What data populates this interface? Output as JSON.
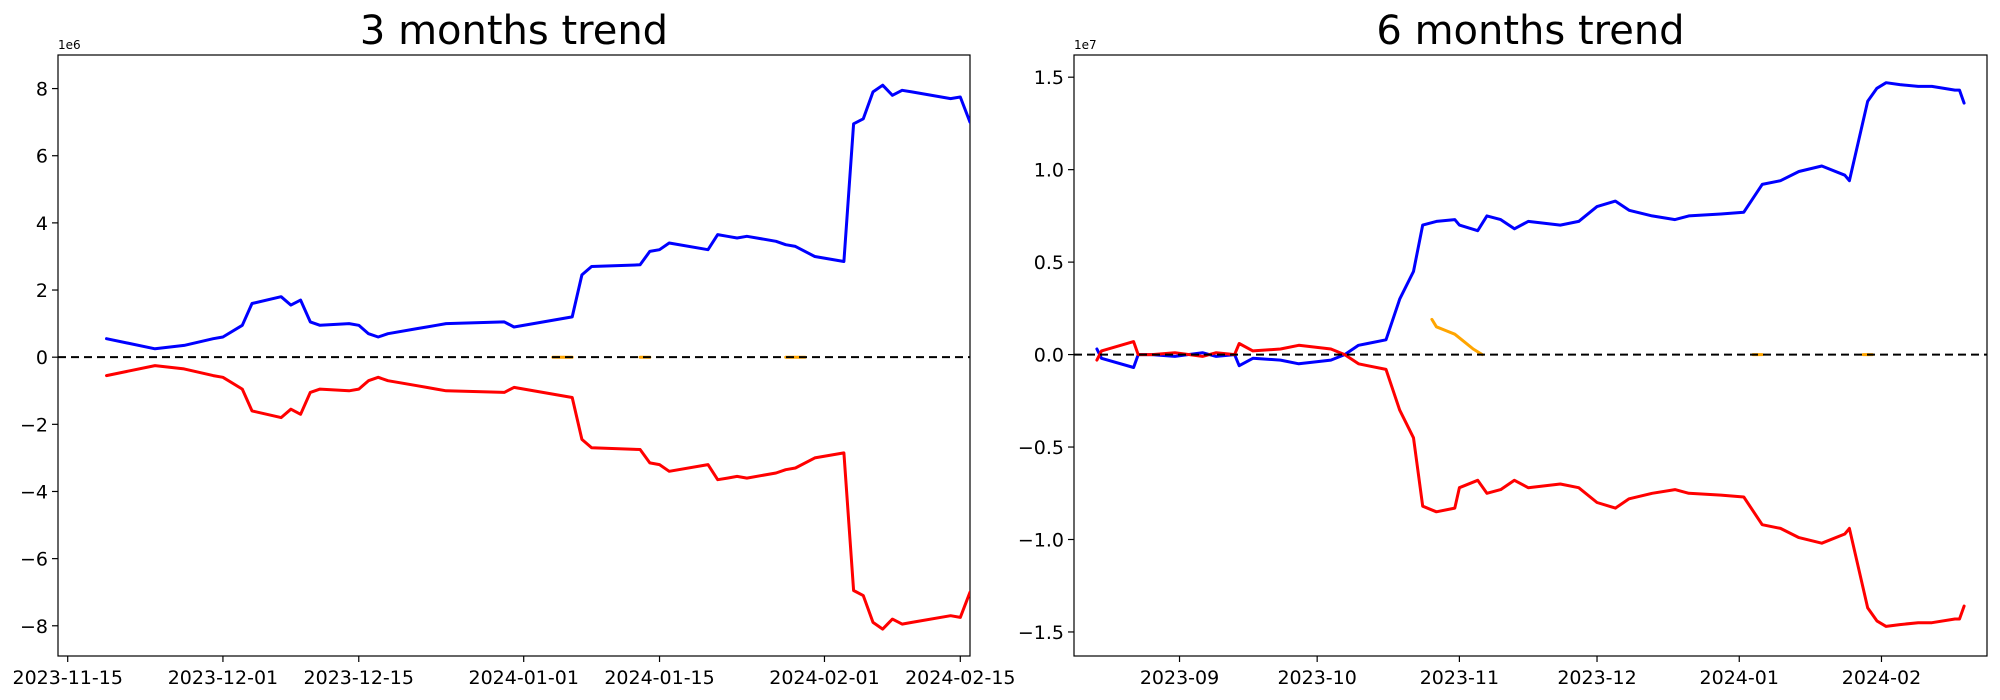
{
  "chart_data": [
    {
      "type": "line",
      "title": "3 months trend",
      "xlabel": "",
      "ylabel": "",
      "y_offset_label": "1e6",
      "xlim": [
        "2023-11-14",
        "2024-02-16"
      ],
      "ylim": [
        -8.9,
        9.0
      ],
      "x_ticks": [
        "2023-11-15",
        "2023-12-01",
        "2023-12-15",
        "2024-01-01",
        "2024-01-15",
        "2024-02-01",
        "2024-02-15"
      ],
      "y_ticks": [
        -8,
        -6,
        -4,
        -2,
        0,
        2,
        4,
        6,
        8
      ],
      "grid": false,
      "legend": "none",
      "reference_line": 0,
      "series": [
        {
          "color": "#0000ff",
          "x": [
            "2023-11-19",
            "2023-11-24",
            "2023-11-27",
            "2023-11-30",
            "2023-12-01",
            "2023-12-03",
            "2023-12-04",
            "2023-12-07",
            "2023-12-08",
            "2023-12-09",
            "2023-12-10",
            "2023-12-11",
            "2023-12-14",
            "2023-12-15",
            "2023-12-16",
            "2023-12-17",
            "2023-12-18",
            "2023-12-21",
            "2023-12-22",
            "2023-12-23",
            "2023-12-24",
            "2023-12-30",
            "2023-12-31",
            "2024-01-06",
            "2024-01-07",
            "2024-01-08",
            "2024-01-13",
            "2024-01-14",
            "2024-01-15",
            "2024-01-16",
            "2024-01-20",
            "2024-01-21",
            "2024-01-22",
            "2024-01-23",
            "2024-01-24",
            "2024-01-27",
            "2024-01-28",
            "2024-01-29",
            "2024-01-31",
            "2024-02-03",
            "2024-02-04",
            "2024-02-05",
            "2024-02-06",
            "2024-02-07",
            "2024-02-08",
            "2024-02-09",
            "2024-02-10",
            "2024-02-14",
            "2024-02-15",
            "2024-02-16"
          ],
          "values": [
            0.55,
            0.25,
            0.35,
            0.55,
            0.6,
            0.95,
            1.6,
            1.8,
            1.55,
            1.7,
            1.05,
            0.95,
            1.0,
            0.95,
            0.7,
            0.6,
            0.7,
            0.85,
            0.9,
            0.95,
            1.0,
            1.05,
            0.9,
            1.2,
            2.45,
            2.7,
            2.75,
            3.15,
            3.2,
            3.4,
            3.2,
            3.65,
            3.6,
            3.55,
            3.6,
            3.45,
            3.35,
            3.3,
            3.0,
            2.85,
            6.95,
            7.1,
            7.9,
            8.1,
            7.8,
            7.95,
            7.9,
            7.7,
            7.75,
            7.0
          ]
        },
        {
          "color": "#ff0000",
          "x": [
            "2023-11-19",
            "2023-11-24",
            "2023-11-27",
            "2023-11-30",
            "2023-12-01",
            "2023-12-03",
            "2023-12-04",
            "2023-12-07",
            "2023-12-08",
            "2023-12-09",
            "2023-12-10",
            "2023-12-11",
            "2023-12-14",
            "2023-12-15",
            "2023-12-16",
            "2023-12-17",
            "2023-12-18",
            "2023-12-21",
            "2023-12-22",
            "2023-12-23",
            "2023-12-24",
            "2023-12-30",
            "2023-12-31",
            "2024-01-06",
            "2024-01-07",
            "2024-01-08",
            "2024-01-13",
            "2024-01-14",
            "2024-01-15",
            "2024-01-16",
            "2024-01-20",
            "2024-01-21",
            "2024-01-22",
            "2024-01-23",
            "2024-01-24",
            "2024-01-27",
            "2024-01-28",
            "2024-01-29",
            "2024-01-31",
            "2024-02-03",
            "2024-02-04",
            "2024-02-05",
            "2024-02-06",
            "2024-02-07",
            "2024-02-08",
            "2024-02-09",
            "2024-02-10",
            "2024-02-14",
            "2024-02-15",
            "2024-02-16"
          ],
          "values": [
            -0.55,
            -0.25,
            -0.35,
            -0.55,
            -0.6,
            -0.95,
            -1.6,
            -1.8,
            -1.55,
            -1.7,
            -1.05,
            -0.95,
            -1.0,
            -0.95,
            -0.7,
            -0.6,
            -0.7,
            -0.85,
            -0.9,
            -0.95,
            -1.0,
            -1.05,
            -0.9,
            -1.2,
            -2.45,
            -2.7,
            -2.75,
            -3.15,
            -3.2,
            -3.4,
            -3.2,
            -3.65,
            -3.6,
            -3.55,
            -3.6,
            -3.45,
            -3.35,
            -3.3,
            -3.0,
            -2.85,
            -6.95,
            -7.1,
            -7.9,
            -8.1,
            -7.8,
            -7.95,
            -7.9,
            -7.7,
            -7.75,
            -7.0
          ]
        },
        {
          "color": "#ffa500",
          "x": [
            "2024-01-04",
            "2024-01-06"
          ],
          "values": [
            0.0,
            0.0
          ]
        },
        {
          "color": "#ffa500",
          "x": [
            "2024-01-13",
            "2024-01-14"
          ],
          "values": [
            0.0,
            0.0
          ]
        },
        {
          "color": "#ffa500",
          "x": [
            "2024-01-28",
            "2024-01-30"
          ],
          "values": [
            0.0,
            0.0
          ]
        }
      ]
    },
    {
      "type": "line",
      "title": "6 months trend",
      "xlabel": "",
      "ylabel": "",
      "y_offset_label": "1e7",
      "xlim": [
        "2023-08-09",
        "2024-02-24"
      ],
      "ylim": [
        -1.63,
        1.62
      ],
      "x_ticks": [
        "2023-09",
        "2023-10",
        "2023-11",
        "2023-12",
        "2024-01",
        "2024-02"
      ],
      "y_ticks": [
        -1.5,
        -1.0,
        -0.5,
        0.0,
        0.5,
        1.0,
        1.5
      ],
      "grid": false,
      "legend": "none",
      "reference_line": 0,
      "series": [
        {
          "color": "#0000ff",
          "x": [
            "2023-08-14",
            "2023-08-15",
            "2023-08-22",
            "2023-08-23",
            "2023-08-26",
            "2023-08-31",
            "2023-09-06",
            "2023-09-09",
            "2023-09-13",
            "2023-09-14",
            "2023-09-17",
            "2023-09-23",
            "2023-09-27",
            "2023-10-04",
            "2023-10-07",
            "2023-10-10",
            "2023-10-12",
            "2023-10-16",
            "2023-10-19",
            "2023-10-22",
            "2023-10-24",
            "2023-10-27",
            "2023-10-31",
            "2023-11-01",
            "2023-11-05",
            "2023-11-07",
            "2023-11-10",
            "2023-11-13",
            "2023-11-16",
            "2023-11-23",
            "2023-11-27",
            "2023-12-01",
            "2023-12-05",
            "2023-12-08",
            "2023-12-13",
            "2023-12-18",
            "2023-12-21",
            "2023-12-28",
            "2024-01-02",
            "2024-01-06",
            "2024-01-10",
            "2024-01-14",
            "2024-01-19",
            "2024-01-24",
            "2024-01-25",
            "2024-01-29",
            "2024-01-31",
            "2024-02-02",
            "2024-02-05",
            "2024-02-09",
            "2024-02-12",
            "2024-02-17",
            "2024-02-18",
            "2024-02-19"
          ],
          "values": [
            0.03,
            -0.02,
            -0.07,
            0.0,
            0.0,
            -0.01,
            0.01,
            -0.01,
            0.0,
            -0.06,
            -0.02,
            -0.03,
            -0.05,
            -0.03,
            0.0,
            0.05,
            0.06,
            0.08,
            0.3,
            0.45,
            0.7,
            0.72,
            0.73,
            0.7,
            0.67,
            0.75,
            0.73,
            0.68,
            0.72,
            0.7,
            0.72,
            0.8,
            0.83,
            0.78,
            0.75,
            0.73,
            0.75,
            0.76,
            0.77,
            0.92,
            0.94,
            0.99,
            1.02,
            0.97,
            0.94,
            1.37,
            1.44,
            1.47,
            1.46,
            1.45,
            1.45,
            1.43,
            1.43,
            1.36
          ]
        },
        {
          "color": "#ff0000",
          "x": [
            "2023-08-14",
            "2023-08-15",
            "2023-08-22",
            "2023-08-23",
            "2023-08-26",
            "2023-08-31",
            "2023-09-06",
            "2023-09-09",
            "2023-09-13",
            "2023-09-14",
            "2023-09-17",
            "2023-09-23",
            "2023-09-27",
            "2023-10-04",
            "2023-10-07",
            "2023-10-10",
            "2023-10-12",
            "2023-10-16",
            "2023-10-19",
            "2023-10-22",
            "2023-10-24",
            "2023-10-27",
            "2023-10-31",
            "2023-11-01",
            "2023-11-05",
            "2023-11-07",
            "2023-11-10",
            "2023-11-13",
            "2023-11-16",
            "2023-11-23",
            "2023-11-27",
            "2023-12-01",
            "2023-12-05",
            "2023-12-08",
            "2023-12-13",
            "2023-12-18",
            "2023-12-21",
            "2023-12-28",
            "2024-01-02",
            "2024-01-06",
            "2024-01-10",
            "2024-01-14",
            "2024-01-19",
            "2024-01-24",
            "2024-01-25",
            "2024-01-29",
            "2024-01-31",
            "2024-02-02",
            "2024-02-05",
            "2024-02-09",
            "2024-02-12",
            "2024-02-17",
            "2024-02-18",
            "2024-02-19"
          ],
          "values": [
            -0.03,
            0.02,
            0.07,
            0.0,
            0.0,
            0.01,
            -0.01,
            0.01,
            0.0,
            0.06,
            0.02,
            0.03,
            0.05,
            0.03,
            0.0,
            -0.05,
            -0.06,
            -0.08,
            -0.3,
            -0.45,
            -0.82,
            -0.85,
            -0.83,
            -0.72,
            -0.68,
            -0.75,
            -0.73,
            -0.68,
            -0.72,
            -0.7,
            -0.72,
            -0.8,
            -0.83,
            -0.78,
            -0.75,
            -0.73,
            -0.75,
            -0.76,
            -0.77,
            -0.92,
            -0.94,
            -0.99,
            -1.02,
            -0.97,
            -0.94,
            -1.37,
            -1.44,
            -1.47,
            -1.46,
            -1.45,
            -1.45,
            -1.43,
            -1.43,
            -1.36
          ]
        },
        {
          "color": "#ffa500",
          "x": [
            "2023-10-26",
            "2023-10-27",
            "2023-10-29",
            "2023-10-31",
            "2023-11-02",
            "2023-11-04",
            "2023-11-06"
          ],
          "values": [
            0.19,
            0.15,
            0.13,
            0.11,
            0.07,
            0.03,
            0.0
          ]
        },
        {
          "color": "#ffa500",
          "x": [
            "2024-01-04",
            "2024-01-06"
          ],
          "values": [
            0.0,
            0.0
          ]
        },
        {
          "color": "#ffa500",
          "x": [
            "2024-01-28",
            "2024-01-30"
          ],
          "values": [
            0.0,
            0.0
          ]
        }
      ]
    }
  ]
}
